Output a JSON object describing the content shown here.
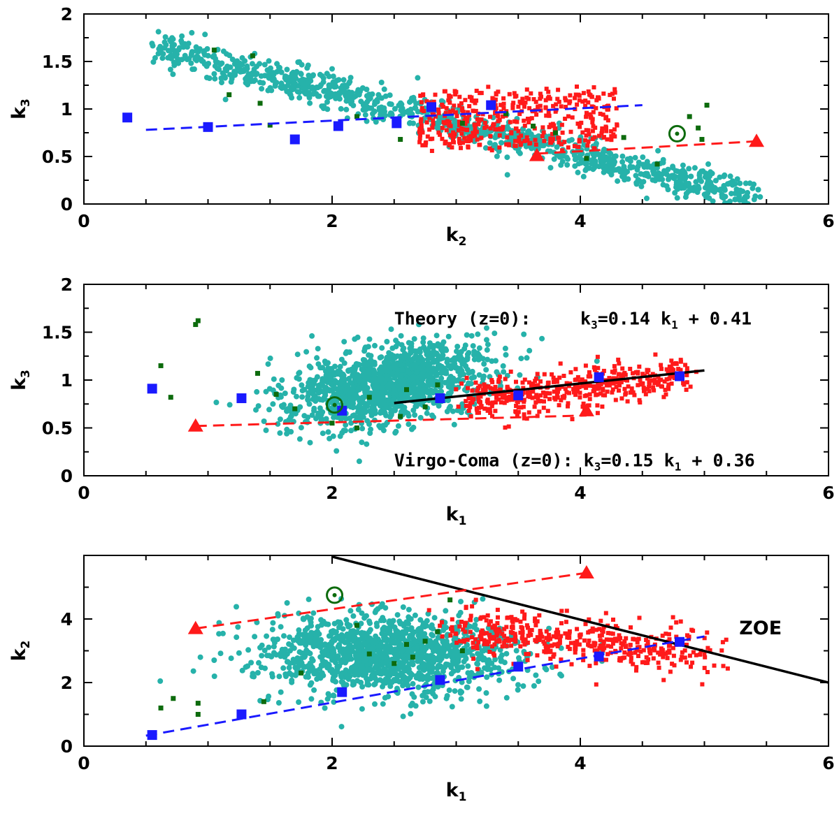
{
  "colors": {
    "teal": "#26b2aa",
    "red": "#ff1a1a",
    "blue": "#1a1aff",
    "darkgreen": "#0d6b0d",
    "black": "#000000"
  },
  "chart_data": [
    {
      "type": "scatter",
      "xlabel": "k",
      "xlabel_sub": "2",
      "ylabel": "k",
      "ylabel_sub": "3",
      "xlim": [
        0,
        6
      ],
      "ylim": [
        0,
        2
      ],
      "xticks": [
        "0",
        "2",
        "4",
        "6"
      ],
      "yticks": [
        "0",
        "0.5",
        "1",
        "1.5",
        "2"
      ],
      "ytick_values": [
        0,
        0.5,
        1,
        1.5,
        2
      ],
      "clouds": [
        {
          "color": "teal",
          "shape": "circle",
          "count": 1100,
          "band": {
            "x0": 0.6,
            "y0": 1.65,
            "x1": 5.4,
            "y1": 0.05,
            "width": 0.09
          }
        },
        {
          "color": "red",
          "shape": "square",
          "count": 420,
          "box": [
            2.7,
            4.3,
            0.6,
            1.2
          ]
        }
      ],
      "blue_squares": [
        [
          0.35,
          0.91
        ],
        [
          1.0,
          0.81
        ],
        [
          1.7,
          0.68
        ],
        [
          2.05,
          0.82
        ],
        [
          2.52,
          0.85
        ],
        [
          2.8,
          1.02
        ],
        [
          3.28,
          1.04
        ]
      ],
      "red_triangles": [
        [
          3.65,
          0.51
        ],
        [
          5.42,
          0.66
        ]
      ],
      "green_points": [
        [
          1.05,
          1.62
        ],
        [
          1.17,
          1.15
        ],
        [
          1.36,
          1.56
        ],
        [
          1.42,
          1.06
        ],
        [
          1.5,
          0.83
        ],
        [
          2.2,
          0.92
        ],
        [
          2.55,
          0.68
        ],
        [
          3.05,
          0.85
        ],
        [
          3.4,
          0.95
        ],
        [
          3.62,
          0.82
        ],
        [
          3.8,
          0.75
        ],
        [
          4.05,
          0.48
        ],
        [
          4.35,
          0.7
        ],
        [
          4.62,
          0.42
        ],
        [
          4.88,
          0.92
        ],
        [
          4.95,
          0.8
        ],
        [
          4.98,
          0.68
        ],
        [
          5.02,
          1.04
        ]
      ],
      "sun_symbol": [
        4.78,
        0.74
      ],
      "lines": [
        {
          "color": "blue",
          "style": "dashed",
          "points": [
            [
              0.5,
              0.78
            ],
            [
              4.5,
              1.04
            ]
          ]
        },
        {
          "color": "red",
          "style": "dashed",
          "points": [
            [
              3.65,
              0.53
            ],
            [
              5.42,
              0.66
            ]
          ]
        }
      ]
    },
    {
      "type": "scatter",
      "xlabel": "k",
      "xlabel_sub": "1",
      "ylabel": "k",
      "ylabel_sub": "3",
      "xlim": [
        0,
        6
      ],
      "ylim": [
        0,
        2
      ],
      "xticks": [
        "0",
        "2",
        "4",
        "6"
      ],
      "yticks": [
        "0",
        "0.5",
        "1",
        "1.5",
        "2"
      ],
      "ytick_values": [
        0,
        0.5,
        1,
        1.5,
        2
      ],
      "clouds": [
        {
          "color": "teal",
          "shape": "circle",
          "count": 1300,
          "blob": {
            "cx": 2.45,
            "cy": 0.95,
            "sx": 0.35,
            "sy": 0.22,
            "rot": -0.35
          }
        },
        {
          "color": "red",
          "shape": "square",
          "count": 420,
          "band": {
            "x0": 3.05,
            "y0": 0.78,
            "x1": 4.85,
            "y1": 1.06,
            "width": 0.1
          }
        }
      ],
      "blue_squares": [
        [
          0.55,
          0.91
        ],
        [
          1.27,
          0.81
        ],
        [
          2.08,
          0.68
        ],
        [
          2.87,
          0.81
        ],
        [
          3.5,
          0.84
        ],
        [
          4.15,
          1.03
        ],
        [
          4.8,
          1.04
        ]
      ],
      "red_triangles": [
        [
          0.9,
          0.52
        ],
        [
          4.05,
          0.68
        ]
      ],
      "green_points": [
        [
          0.9,
          1.58
        ],
        [
          0.92,
          1.62
        ],
        [
          0.62,
          1.15
        ],
        [
          0.7,
          0.82
        ],
        [
          1.4,
          1.07
        ],
        [
          1.55,
          0.85
        ],
        [
          1.7,
          0.7
        ],
        [
          2.3,
          0.82
        ],
        [
          2.6,
          0.9
        ],
        [
          2.75,
          0.72
        ],
        [
          2.85,
          0.95
        ],
        [
          2.2,
          0.5
        ],
        [
          2.0,
          0.55
        ],
        [
          2.55,
          0.62
        ]
      ],
      "sun_symbol": [
        2.02,
        0.74
      ],
      "lines": [
        {
          "color": "black",
          "style": "solid",
          "points": [
            [
              2.5,
              0.76
            ],
            [
              5.0,
              1.1
            ]
          ]
        },
        {
          "color": "red",
          "style": "dashed",
          "points": [
            [
              0.9,
              0.52
            ],
            [
              4.05,
              0.63
            ]
          ]
        }
      ],
      "annotations": [
        {
          "parts": [
            {
              "text": "Theory (z=0):"
            }
          ],
          "x": 2.5,
          "y": 1.58
        },
        {
          "parts": [
            {
              "text": "k"
            },
            {
              "text": "3",
              "sub": true
            },
            {
              "text": "=0.14 k"
            },
            {
              "text": "1",
              "sub": true
            },
            {
              "text": " + 0.41"
            }
          ],
          "x": 4.0,
          "y": 1.58
        },
        {
          "parts": [
            {
              "text": "Virgo-Coma (z=0): k"
            },
            {
              "text": "3",
              "sub": true
            },
            {
              "text": "=0.15 k"
            },
            {
              "text": "1",
              "sub": true
            },
            {
              "text": " + 0.36"
            }
          ],
          "x": 2.5,
          "y": 0.1
        }
      ]
    },
    {
      "type": "scatter",
      "xlabel": "k",
      "xlabel_sub": "1",
      "ylabel": "k",
      "ylabel_sub": "2",
      "xlim": [
        0,
        6
      ],
      "ylim": [
        0,
        6
      ],
      "xticks": [
        "0",
        "2",
        "4",
        "6"
      ],
      "yticks": [
        "0",
        "2",
        "4"
      ],
      "ytick_values": [
        0,
        2,
        4
      ],
      "clouds": [
        {
          "color": "teal",
          "shape": "circle",
          "count": 1300,
          "blob": {
            "cx": 2.45,
            "cy": 2.9,
            "sx": 0.45,
            "sy": 0.55,
            "rot": 0.9
          }
        },
        {
          "color": "red",
          "shape": "square",
          "count": 420,
          "band": {
            "x0": 3.1,
            "y0": 3.7,
            "x1": 4.9,
            "y1": 2.9,
            "width": 0.35
          }
        }
      ],
      "blue_squares": [
        [
          0.55,
          0.35
        ],
        [
          1.27,
          1.0
        ],
        [
          2.08,
          1.7
        ],
        [
          2.87,
          2.08
        ],
        [
          3.5,
          2.5
        ],
        [
          4.15,
          2.82
        ],
        [
          4.8,
          3.28
        ]
      ],
      "red_triangles": [
        [
          0.9,
          3.7
        ],
        [
          4.05,
          5.45
        ]
      ],
      "green_points": [
        [
          0.62,
          1.2
        ],
        [
          0.72,
          1.5
        ],
        [
          0.92,
          1.0
        ],
        [
          0.92,
          1.35
        ],
        [
          1.45,
          1.4
        ],
        [
          1.75,
          2.3
        ],
        [
          2.2,
          3.8
        ],
        [
          2.3,
          2.9
        ],
        [
          2.6,
          3.2
        ],
        [
          2.75,
          3.3
        ],
        [
          2.85,
          3.6
        ],
        [
          2.95,
          4.6
        ],
        [
          3.05,
          3.0
        ],
        [
          2.65,
          2.8
        ],
        [
          2.5,
          2.6
        ]
      ],
      "sun_symbol": [
        2.02,
        4.75
      ],
      "lines": [
        {
          "color": "black",
          "style": "solid",
          "points": [
            [
              2.0,
              5.96
            ],
            [
              6.0,
              2.0
            ]
          ]
        },
        {
          "color": "red",
          "style": "dashed",
          "points": [
            [
              0.9,
              3.7
            ],
            [
              4.05,
              5.45
            ]
          ]
        },
        {
          "color": "blue",
          "style": "dashed",
          "points": [
            [
              0.5,
              0.33
            ],
            [
              5.0,
              3.45
            ]
          ]
        }
      ],
      "annotations": [
        {
          "parts": [
            {
              "text": "ZOE"
            }
          ],
          "x": 5.28,
          "y": 3.52,
          "style": "zoe"
        }
      ]
    }
  ]
}
